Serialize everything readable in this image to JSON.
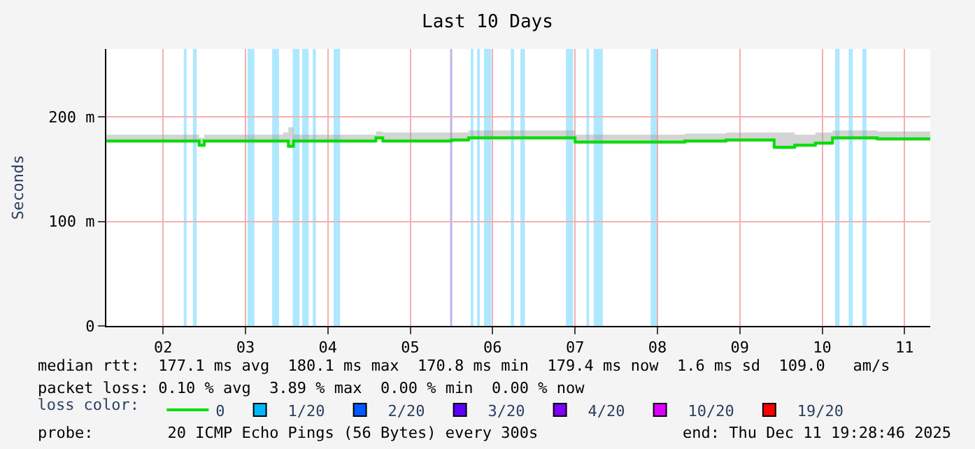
{
  "chart_data": {
    "type": "step",
    "title": "Last 10 Days",
    "ylabel": "Seconds",
    "x": [
      "2025-12-01T19:30",
      "2025-12-02T22:00",
      "2025-12-02T22:30",
      "2025-12-03T00:00",
      "2025-12-03T23:00",
      "2025-12-04T00:30",
      "2025-12-04T02:00",
      "2025-12-05T02:00",
      "2025-12-05T04:00",
      "2025-12-06T00:00",
      "2025-12-06T05:00",
      "2025-12-07T10:00",
      "2025-12-07T12:00",
      "2025-12-08T20:00",
      "2025-12-09T08:00",
      "2025-12-09T22:00",
      "2025-12-10T04:00",
      "2025-12-10T10:00",
      "2025-12-10T15:00",
      "2025-12-11T04:00",
      "2025-12-11T19:28"
    ],
    "series": [
      {
        "name": "0",
        "color": "#00e000",
        "values": [
          177,
          177,
          173,
          177,
          177,
          172,
          177,
          180,
          177,
          178,
          180,
          180,
          176,
          177,
          178,
          171,
          173,
          175,
          180,
          179,
          179
        ],
        "lower": [
          175,
          175,
          171,
          175,
          175,
          170,
          175,
          178,
          175,
          176,
          178,
          178,
          174,
          175,
          176,
          169,
          171,
          173,
          178,
          177,
          177
        ],
        "upper": [
          183,
          183,
          180,
          183,
          185,
          190,
          183,
          186,
          185,
          185,
          187,
          187,
          183,
          184,
          185,
          185,
          183,
          185,
          187,
          186,
          186
        ]
      },
      {
        "name": "1/20",
        "color": "#00b8ff",
        "values": [
          null,
          null,
          null,
          null,
          null,
          null,
          null,
          null,
          null,
          null,
          null,
          null,
          null,
          null,
          null,
          null,
          null,
          null,
          null,
          null,
          null
        ]
      },
      {
        "name": "2/20",
        "color": "#0059ff",
        "values": [
          null,
          null,
          null,
          null,
          null,
          null,
          null,
          null,
          null,
          null,
          null,
          null,
          null,
          null,
          null,
          null,
          null,
          null,
          null,
          null,
          null
        ]
      },
      {
        "name": "3/20",
        "color": "#5e00ff",
        "values": [
          null,
          null,
          null,
          null,
          null,
          null,
          null,
          null,
          null,
          null,
          null,
          null,
          null,
          null,
          null,
          null,
          null,
          null,
          null,
          null,
          null
        ]
      },
      {
        "name": "4/20",
        "color": "#7e00ff",
        "values": [
          null,
          null,
          null,
          null,
          null,
          null,
          null,
          null,
          null,
          null,
          null,
          null,
          null,
          null,
          null,
          null,
          null,
          null,
          null,
          null,
          null
        ]
      },
      {
        "name": "10/20",
        "color": "#dd00ff",
        "values": [
          null,
          null,
          null,
          null,
          null,
          null,
          null,
          null,
          null,
          null,
          null,
          null,
          null,
          null,
          null,
          null,
          null,
          null,
          null,
          null,
          null
        ]
      },
      {
        "name": "19/20",
        "color": "#ff0000",
        "values": [
          null,
          null,
          null,
          null,
          null,
          null,
          null,
          null,
          null,
          null,
          null,
          null,
          null,
          null,
          null,
          null,
          null,
          null,
          null,
          null,
          null
        ]
      }
    ],
    "legend_title": "loss color:",
    "legend": "bottom",
    "grid": true,
    "xlim": [
      "2025-12-01T19:28",
      "2025-12-11T19:28"
    ],
    "xticks": [
      {
        "value": "2025-12-02T12:00",
        "label": "02"
      },
      {
        "value": "2025-12-03T12:00",
        "label": "03"
      },
      {
        "value": "2025-12-04T12:00",
        "label": "04"
      },
      {
        "value": "2025-12-05T12:00",
        "label": "05"
      },
      {
        "value": "2025-12-06T12:00",
        "label": "06"
      },
      {
        "value": "2025-12-07T12:00",
        "label": "07"
      },
      {
        "value": "2025-12-08T12:00",
        "label": "08"
      },
      {
        "value": "2025-12-09T12:00",
        "label": "09"
      },
      {
        "value": "2025-12-10T12:00",
        "label": "10"
      },
      {
        "value": "2025-12-11T12:00",
        "label": "11"
      }
    ],
    "ylim": [
      0,
      265
    ],
    "yticks": [
      0,
      {
        "value": 100,
        "label": "100 m"
      },
      {
        "value": 200,
        "label": "200 m"
      }
    ],
    "bands": [
      {
        "axis": "x",
        "from": "2025-12-02T18:02",
        "to": "2025-12-02T18:50",
        "color": "#aee8ff"
      },
      {
        "axis": "x",
        "from": "2025-12-02T20:42",
        "to": "2025-12-02T21:46",
        "color": "#aee8ff"
      },
      {
        "axis": "x",
        "from": "2025-12-03T12:37",
        "to": "2025-12-03T14:37",
        "color": "#aee8ff"
      },
      {
        "axis": "x",
        "from": "2025-12-03T19:47",
        "to": "2025-12-03T21:46",
        "color": "#aee8ff"
      },
      {
        "axis": "x",
        "from": "2025-12-04T01:45",
        "to": "2025-12-04T03:44",
        "color": "#aee8ff"
      },
      {
        "axis": "x",
        "from": "2025-12-04T04:32",
        "to": "2025-12-04T06:25",
        "color": "#aee8ff"
      },
      {
        "axis": "x",
        "from": "2025-12-04T07:36",
        "to": "2025-12-04T08:31",
        "color": "#aee8ff"
      },
      {
        "axis": "x",
        "from": "2025-12-04T13:41",
        "to": "2025-12-04T15:34",
        "color": "#aee8ff"
      },
      {
        "axis": "x",
        "from": "2025-12-05T23:38",
        "to": "2025-12-06T00:12",
        "color": "#b8b0f0"
      },
      {
        "axis": "x",
        "from": "2025-12-06T05:37",
        "to": "2025-12-06T06:24",
        "color": "#aee8ff"
      },
      {
        "axis": "x",
        "from": "2025-12-06T07:28",
        "to": "2025-12-06T08:16",
        "color": "#aee8ff"
      },
      {
        "axis": "x",
        "from": "2025-12-06T09:28",
        "to": "2025-12-06T11:35",
        "color": "#aee8ff"
      },
      {
        "axis": "x",
        "from": "2025-12-06T17:18",
        "to": "2025-12-06T18:13",
        "color": "#aee8ff"
      },
      {
        "axis": "x",
        "from": "2025-12-06T20:05",
        "to": "2025-12-06T21:24",
        "color": "#aee8ff"
      },
      {
        "axis": "x",
        "from": "2025-12-07T09:21",
        "to": "2025-12-07T11:27",
        "color": "#aee8ff"
      },
      {
        "axis": "x",
        "from": "2025-12-07T15:19",
        "to": "2025-12-07T16:07",
        "color": "#aee8ff"
      },
      {
        "axis": "x",
        "from": "2025-12-07T17:26",
        "to": "2025-12-07T20:06",
        "color": "#aee8ff"
      },
      {
        "axis": "x",
        "from": "2025-12-08T10:01",
        "to": "2025-12-08T12:00",
        "color": "#aee8ff"
      },
      {
        "axis": "x",
        "from": "2025-12-10T15:45",
        "to": "2025-12-10T17:04",
        "color": "#aee8ff"
      },
      {
        "axis": "x",
        "from": "2025-12-10T19:43",
        "to": "2025-12-10T20:55",
        "color": "#aee8ff"
      },
      {
        "axis": "x",
        "from": "2025-12-10T23:42",
        "to": "2025-12-11T00:54",
        "color": "#aee8ff"
      }
    ],
    "annotations": [
      "median rtt:  177.1 ms avg  180.1 ms max  170.8 ms min  179.4 ms now  1.6 ms sd  109.0   am/s",
      "packet loss: 0.10 % avg  3.89 % max  0.00 % min  0.00 % now",
      "probe:        20 ICMP Echo Pings (56 Bytes) every 300s",
      "end: Thu Dec 11 19:28:46 2025"
    ]
  }
}
